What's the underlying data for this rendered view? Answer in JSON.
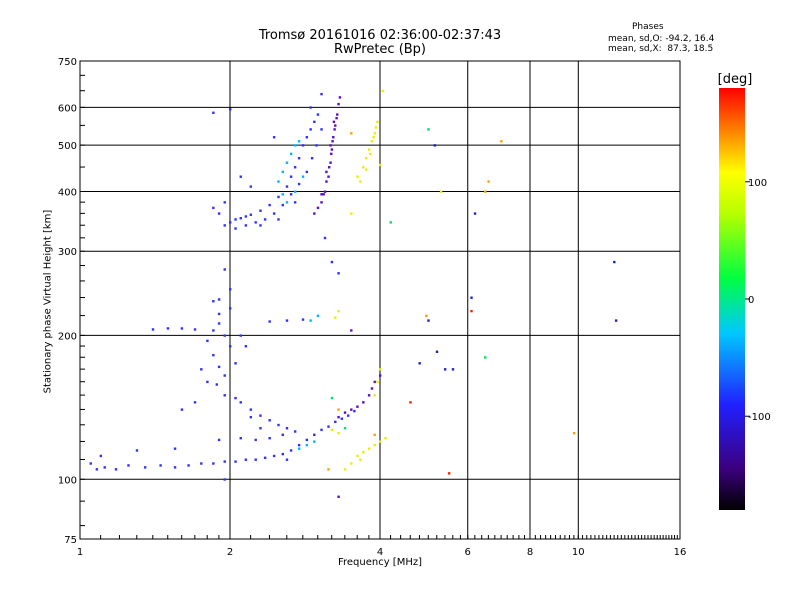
{
  "chart_data": {
    "type": "scatter",
    "title": "Tromsø 20161016 02:36:00-02:37:43",
    "subtitle": "RwPretec (Bp)",
    "xlabel": "Frequency [MHz]",
    "ylabel": "Stationary phase Virtual Height [km]",
    "x_scale": "log",
    "y_scale": "log",
    "xlim": [
      1,
      16
    ],
    "ylim": [
      75,
      750
    ],
    "x_ticks": [
      1,
      2,
      4,
      6,
      8,
      10,
      16
    ],
    "y_ticks": [
      75,
      100,
      200,
      300,
      400,
      500,
      600,
      750
    ],
    "grid": true,
    "stats_title": "Phases",
    "stats_o": "mean, sd,O: -94.2, 16.4",
    "stats_x": "mean, sd,X:  87.3, 18.5",
    "colorbar": {
      "label": "[deg]",
      "range": [
        -180,
        180
      ],
      "ticks": [
        100,
        0,
        -100
      ],
      "colormap": "rainbow-black-to-red"
    },
    "series": [
      {
        "color": "#3030ff",
        "points": [
          [
            1.05,
            108
          ],
          [
            1.08,
            105
          ],
          [
            1.12,
            106
          ],
          [
            1.18,
            105
          ],
          [
            1.25,
            107
          ],
          [
            1.35,
            106
          ],
          [
            1.45,
            107
          ],
          [
            1.55,
            106
          ],
          [
            1.65,
            107
          ],
          [
            1.75,
            108
          ],
          [
            1.85,
            108
          ],
          [
            1.95,
            109
          ],
          [
            2.05,
            109
          ],
          [
            2.15,
            110
          ],
          [
            2.25,
            110
          ],
          [
            2.35,
            111
          ],
          [
            2.45,
            112
          ],
          [
            2.55,
            113
          ],
          [
            2.65,
            115
          ],
          [
            2.75,
            118
          ],
          [
            2.85,
            121
          ],
          [
            2.95,
            124
          ],
          [
            3.05,
            127
          ],
          [
            3.15,
            129
          ],
          [
            3.25,
            132
          ],
          [
            3.35,
            134
          ],
          [
            3.45,
            136
          ],
          [
            3.55,
            139
          ],
          [
            1.1,
            112
          ],
          [
            1.3,
            115
          ],
          [
            1.55,
            116
          ],
          [
            1.9,
            121
          ],
          [
            2.1,
            122
          ],
          [
            2.25,
            121
          ],
          [
            2.4,
            122
          ],
          [
            2.55,
            124
          ],
          [
            2.7,
            126
          ],
          [
            1.4,
            206
          ],
          [
            1.5,
            207
          ],
          [
            1.6,
            207
          ],
          [
            1.7,
            206
          ],
          [
            2.4,
            214
          ],
          [
            2.6,
            215
          ],
          [
            2.8,
            216
          ],
          [
            1.85,
            236
          ],
          [
            1.9,
            238
          ],
          [
            2.0,
            228
          ],
          [
            1.9,
            212
          ],
          [
            1.95,
            200
          ],
          [
            2.0,
            190
          ],
          [
            1.85,
            182
          ],
          [
            1.9,
            172
          ],
          [
            1.95,
            165
          ],
          [
            1.88,
            158
          ],
          [
            1.95,
            150
          ],
          [
            2.05,
            148
          ],
          [
            2.1,
            145
          ],
          [
            2.2,
            140
          ],
          [
            2.3,
            136
          ],
          [
            2.4,
            133
          ],
          [
            2.5,
            130
          ],
          [
            2.6,
            128
          ],
          [
            2.1,
            200
          ],
          [
            2.15,
            190
          ],
          [
            2.05,
            175
          ],
          [
            1.8,
            195
          ],
          [
            1.85,
            205
          ],
          [
            1.9,
            222
          ],
          [
            2.0,
            250
          ],
          [
            1.95,
            275
          ],
          [
            1.8,
            160
          ],
          [
            1.75,
            170
          ],
          [
            1.7,
            145
          ],
          [
            1.6,
            140
          ],
          [
            2.2,
            135
          ],
          [
            2.3,
            128
          ],
          [
            1.95,
            340
          ],
          [
            2.0,
            345
          ],
          [
            2.05,
            350
          ],
          [
            2.1,
            352
          ],
          [
            2.15,
            355
          ],
          [
            2.2,
            358
          ],
          [
            2.3,
            365
          ],
          [
            2.4,
            375
          ],
          [
            2.5,
            390
          ],
          [
            2.6,
            410
          ],
          [
            2.65,
            430
          ],
          [
            2.7,
            450
          ],
          [
            2.75,
            470
          ],
          [
            2.8,
            500
          ],
          [
            2.85,
            520
          ],
          [
            2.9,
            540
          ],
          [
            2.95,
            560
          ],
          [
            3.0,
            580
          ],
          [
            1.85,
            370
          ],
          [
            1.9,
            360
          ],
          [
            2.05,
            335
          ],
          [
            2.15,
            340
          ],
          [
            2.25,
            345
          ],
          [
            2.35,
            350
          ],
          [
            2.45,
            360
          ],
          [
            2.55,
            375
          ],
          [
            2.65,
            395
          ],
          [
            2.75,
            415
          ],
          [
            2.85,
            440
          ],
          [
            2.92,
            470
          ],
          [
            2.98,
            500
          ],
          [
            3.05,
            540
          ],
          [
            2.2,
            410
          ],
          [
            2.1,
            430
          ],
          [
            1.95,
            380
          ],
          [
            2.45,
            520
          ],
          [
            1.85,
            585
          ],
          [
            2.0,
            595
          ],
          [
            3.05,
            640
          ],
          [
            2.9,
            600
          ],
          [
            3.1,
            320
          ],
          [
            3.2,
            285
          ],
          [
            3.3,
            270
          ],
          [
            2.3,
            340
          ],
          [
            2.5,
            350
          ],
          [
            2.7,
            380
          ],
          [
            1.95,
            100
          ],
          [
            2.6,
            110
          ]
        ]
      },
      {
        "color": "#5a0fc8",
        "points": [
          [
            3.05,
            380
          ],
          [
            3.1,
            400
          ],
          [
            3.15,
            430
          ],
          [
            3.18,
            460
          ],
          [
            3.2,
            490
          ],
          [
            3.22,
            520
          ],
          [
            3.25,
            550
          ],
          [
            3.28,
            580
          ],
          [
            3.3,
            610
          ],
          [
            3.32,
            630
          ],
          [
            2.95,
            360
          ],
          [
            3.0,
            370
          ],
          [
            3.08,
            395
          ],
          [
            3.12,
            420
          ],
          [
            3.16,
            450
          ],
          [
            3.19,
            480
          ],
          [
            3.21,
            510
          ],
          [
            3.24,
            540
          ],
          [
            3.27,
            570
          ],
          [
            3.05,
            395
          ],
          [
            3.12,
            440
          ],
          [
            3.18,
            500
          ],
          [
            3.23,
            560
          ],
          [
            3.3,
            135
          ],
          [
            3.4,
            138
          ],
          [
            3.5,
            140
          ],
          [
            3.6,
            142
          ],
          [
            3.7,
            145
          ],
          [
            3.8,
            150
          ],
          [
            3.85,
            155
          ],
          [
            3.9,
            160
          ],
          [
            4.0,
            165
          ],
          [
            3.3,
            92
          ],
          [
            3.5,
            205
          ]
        ]
      },
      {
        "color": "#00b4ff",
        "points": [
          [
            2.55,
            440
          ],
          [
            2.6,
            460
          ],
          [
            2.65,
            480
          ],
          [
            2.7,
            500
          ],
          [
            2.75,
            510
          ],
          [
            2.5,
            420
          ],
          [
            2.55,
            395
          ],
          [
            2.6,
            380
          ],
          [
            2.7,
            400
          ],
          [
            2.8,
            430
          ],
          [
            2.9,
            215
          ],
          [
            3.0,
            220
          ],
          [
            2.75,
            116
          ],
          [
            2.85,
            118
          ],
          [
            2.95,
            120
          ]
        ]
      },
      {
        "color": "#e6f000",
        "points": [
          [
            3.6,
            430
          ],
          [
            3.7,
            450
          ],
          [
            3.75,
            470
          ],
          [
            3.8,
            490
          ],
          [
            3.85,
            510
          ],
          [
            3.9,
            530
          ],
          [
            3.95,
            560
          ],
          [
            3.65,
            420
          ],
          [
            3.75,
            445
          ],
          [
            3.82,
            480
          ],
          [
            3.88,
            520
          ],
          [
            3.92,
            545
          ],
          [
            3.6,
            112
          ],
          [
            3.7,
            114
          ],
          [
            3.8,
            116
          ],
          [
            3.9,
            118
          ],
          [
            4.0,
            120
          ],
          [
            4.1,
            122
          ],
          [
            3.4,
            105
          ],
          [
            3.5,
            108
          ],
          [
            3.65,
            110
          ],
          [
            3.9,
            150
          ],
          [
            3.95,
            160
          ],
          [
            4.0,
            170
          ],
          [
            3.3,
            125
          ],
          [
            3.2,
            127
          ],
          [
            3.3,
            225
          ],
          [
            3.25,
            218
          ],
          [
            3.5,
            360
          ],
          [
            4.0,
            455
          ],
          [
            4.05,
            650
          ],
          [
            5.3,
            400
          ]
        ]
      },
      {
        "color": "#ffa000",
        "points": [
          [
            3.5,
            530
          ],
          [
            3.3,
            140
          ],
          [
            4.95,
            220
          ],
          [
            6.5,
            400
          ],
          [
            6.6,
            420
          ],
          [
            7.0,
            510
          ],
          [
            9.8,
            125
          ],
          [
            3.15,
            105
          ],
          [
            3.9,
            124
          ]
        ]
      },
      {
        "color": "#ff2000",
        "points": [
          [
            4.6,
            145
          ],
          [
            5.5,
            103
          ],
          [
            6.1,
            225
          ]
        ]
      },
      {
        "color": "#00e060",
        "points": [
          [
            5.0,
            540
          ],
          [
            4.2,
            345
          ],
          [
            6.5,
            180
          ],
          [
            3.2,
            148
          ],
          [
            3.4,
            128
          ]
        ]
      },
      {
        "color": "#2020c0",
        "points": [
          [
            5.0,
            215
          ],
          [
            5.2,
            185
          ],
          [
            5.4,
            170
          ],
          [
            6.2,
            360
          ],
          [
            6.1,
            240
          ],
          [
            11.8,
            285
          ],
          [
            11.9,
            215
          ],
          [
            5.15,
            500
          ],
          [
            4.8,
            175
          ],
          [
            5.6,
            170
          ]
        ]
      }
    ]
  }
}
